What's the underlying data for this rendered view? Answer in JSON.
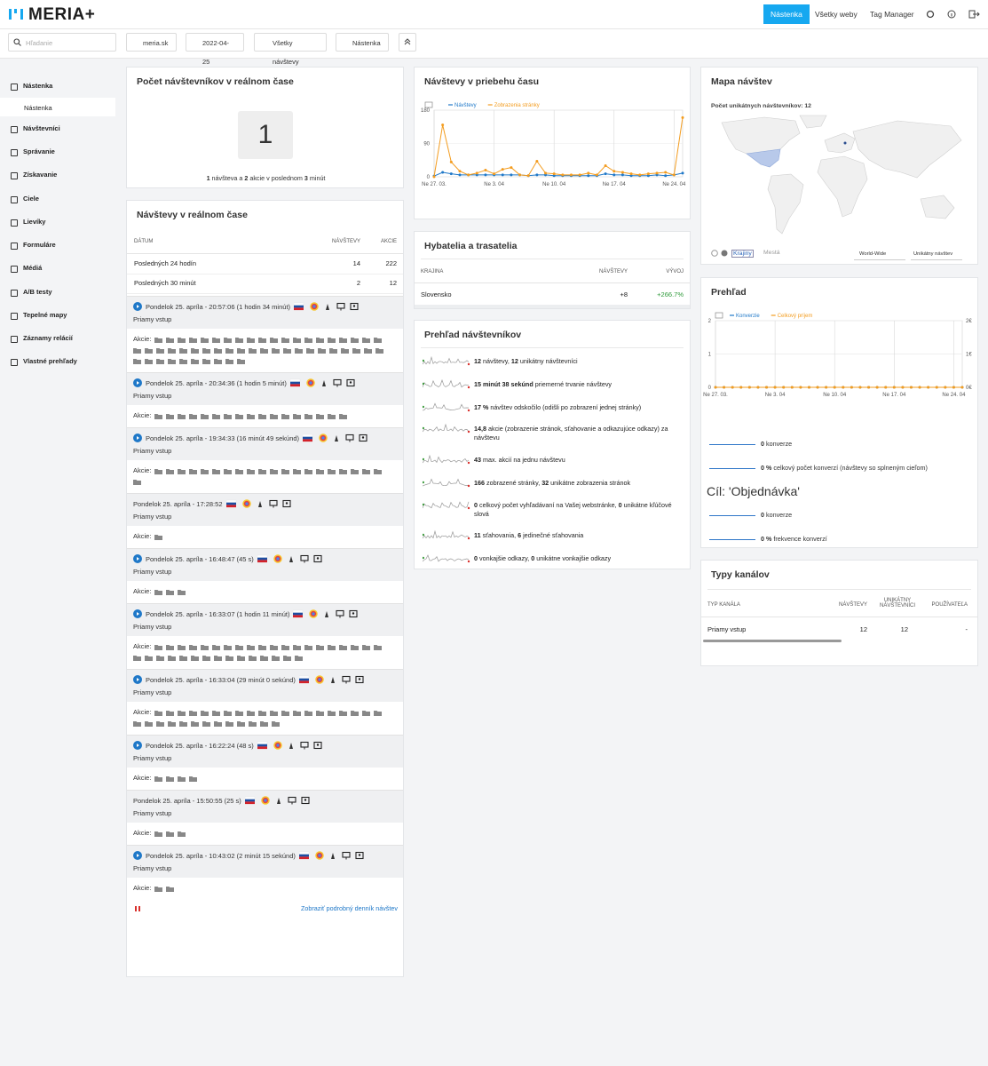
{
  "header": {
    "logo": "MERIA+",
    "nav": [
      "Nástenka",
      "Všetky weby",
      "Tag Manager"
    ]
  },
  "toolbar": {
    "search_placeholder": "Hľadanie",
    "filters": [
      "meria.sk",
      "2022-04-25",
      "Všetky návštevy",
      "Nástenka"
    ]
  },
  "sidebar": {
    "items": [
      "Nástenka",
      "Návštevníci",
      "Správanie",
      "Získavanie",
      "Ciele",
      "Lievíky",
      "Formuláre",
      "Médiá",
      "A/B testy",
      "Tepelné mapy",
      "Záznamy relácií",
      "Vlastné prehľady"
    ],
    "sub_item": "Nástenka"
  },
  "realtime_count": {
    "title": "Počet návštevníkov v reálnom čase",
    "value": 1,
    "summary": [
      "1",
      " návšteva a ",
      "2",
      " akcie v poslednom ",
      "3",
      " minút"
    ]
  },
  "realtime_visits": {
    "title": "Návštevy v reálnom čase",
    "headers": [
      "DÁTUM",
      "NÁVŠTEVY",
      "AKCIE"
    ],
    "rows": [
      [
        "Posledných 24 hodín",
        14,
        222
      ],
      [
        "Posledných 30 minút",
        2,
        12
      ]
    ],
    "visits": [
      {
        "time": "Pondelok 25. apríla - 20:57:06 (1 hodin 34 minút)",
        "play": true,
        "source": "Priamy vstup",
        "actions_label": "Akcie:",
        "action_icons": 52
      },
      {
        "time": "Pondelok 25. apríla - 20:34:36 (1 hodin 5 minút)",
        "play": true,
        "source": "Priamy vstup",
        "actions_label": "Akcie:",
        "action_icons": 17
      },
      {
        "time": "Pondelok 25. apríla - 19:34:33 (16 minút 49 sekúnd)",
        "play": true,
        "source": "Priamy vstup",
        "actions_label": "Akcie:",
        "action_icons": 21
      },
      {
        "time": "Pondelok 25. apríla - 17:28:52",
        "play": false,
        "source": "Priamy vstup",
        "actions_label": "Akcie:",
        "action_icons": 1
      },
      {
        "time": "Pondelok 25. apríla - 16:48:47 (45 s)",
        "play": true,
        "source": "Priamy vstup",
        "actions_label": "Akcie:",
        "action_icons": 3
      },
      {
        "time": "Pondelok 25. apríla - 16:33:07 (1 hodin 11 minút)",
        "play": true,
        "source": "Priamy vstup",
        "actions_label": "Akcie:",
        "action_icons": 35
      },
      {
        "time": "Pondelok 25. apríla - 16:33:04 (29 minút 0 sekúnd)",
        "play": true,
        "source": "Priamy vstup",
        "actions_label": "Akcie:",
        "action_icons": 33
      },
      {
        "time": "Pondelok 25. apríla - 16:22:24 (48 s)",
        "play": true,
        "source": "Priamy vstup",
        "actions_label": "Akcie:",
        "action_icons": 4
      },
      {
        "time": "Pondelok 25. apríla - 15:50:55 (25 s)",
        "play": false,
        "source": "Priamy vstup",
        "actions_label": "Akcie:",
        "action_icons": 3
      },
      {
        "time": "Pondelok 25. apríla - 10:43:02 (2 minút 15 sekúnd)",
        "play": true,
        "source": "Priamy vstup",
        "actions_label": "Akcie:",
        "action_icons": 2
      }
    ],
    "footer": "Zobraziť podrobný denník návštev"
  },
  "chart_data": [
    {
      "type": "line",
      "title": "Návštevy v priebehu času",
      "categories": [
        "Ne 27. 03.",
        null,
        null,
        null,
        null,
        null,
        null,
        "Ne 3. 04",
        null,
        null,
        null,
        null,
        null,
        null,
        "Ne 10. 04",
        null,
        null,
        null,
        null,
        null,
        null,
        "Ne 17. 04",
        null,
        null,
        null,
        null,
        null,
        null,
        "Ne 24. 04",
        null
      ],
      "ylim": [
        0,
        180
      ],
      "yticks": [
        0,
        90,
        180
      ],
      "series": [
        {
          "name": "Návštevy",
          "color": "#1f78c8",
          "values": [
            2,
            12,
            8,
            5,
            5,
            5,
            5,
            5,
            5,
            5,
            5,
            3,
            5,
            5,
            3,
            3,
            3,
            3,
            3,
            3,
            8,
            5,
            5,
            3,
            3,
            3,
            5,
            3,
            5,
            10
          ]
        },
        {
          "name": "Zobrazenia stránky",
          "color": "#f39c1f",
          "values": [
            0,
            140,
            40,
            15,
            5,
            10,
            18,
            8,
            20,
            25,
            5,
            3,
            42,
            10,
            8,
            5,
            5,
            5,
            10,
            5,
            30,
            15,
            12,
            8,
            5,
            8,
            10,
            12,
            5,
            160
          ]
        }
      ]
    },
    {
      "type": "line",
      "title": "Prehľad",
      "categories": [
        "Ne 27. 03.",
        null,
        null,
        null,
        null,
        null,
        null,
        "Ne 3. 04",
        null,
        null,
        null,
        null,
        null,
        null,
        "Ne 10. 04",
        null,
        null,
        null,
        null,
        null,
        null,
        "Ne 17. 04",
        null,
        null,
        null,
        null,
        null,
        null,
        "Ne 24. 04",
        null
      ],
      "ylim": [
        0,
        2
      ],
      "yticks": [
        0,
        1,
        2
      ],
      "y2lim": [
        0,
        2
      ],
      "y2ticks": [
        {
          "value": 0,
          "label": "0€"
        },
        {
          "value": 1,
          "label": "1€"
        },
        {
          "value": 2,
          "label": "2€"
        }
      ],
      "series": [
        {
          "name": "Konverzie",
          "color": "#1f78c8",
          "values": [
            0,
            0,
            0,
            0,
            0,
            0,
            0,
            0,
            0,
            0,
            0,
            0,
            0,
            0,
            0,
            0,
            0,
            0,
            0,
            0,
            0,
            0,
            0,
            0,
            0,
            0,
            0,
            0,
            0,
            0
          ]
        },
        {
          "name": "Celkový príjem",
          "color": "#f39c1f",
          "axis": "y2",
          "values": [
            0,
            0,
            0,
            0,
            0,
            0,
            0,
            0,
            0,
            0,
            0,
            0,
            0,
            0,
            0,
            0,
            0,
            0,
            0,
            0,
            0,
            0,
            0,
            0,
            0,
            0,
            0,
            0,
            0,
            0
          ]
        }
      ]
    }
  ],
  "movers": {
    "title": "Hybatelia a trasatelia",
    "headers": [
      "KRAJINA",
      "NÁVŠTEVY",
      "VÝVOJ"
    ],
    "rows": [
      [
        "Slovensko",
        "+8",
        "+266.7%"
      ]
    ]
  },
  "visitor_overview": {
    "title": "Prehľad návštevníkov",
    "items": [
      [
        "12",
        " návštevy, ",
        "12",
        " unikátny návštevníci"
      ],
      [
        "15 minút 38 sekúnd",
        " priemerné trvanie návštevy"
      ],
      [
        "17 %",
        " návštev odskočilo (odišli po zobrazení jednej stránky)"
      ],
      [
        "14,8",
        " akcie (zobrazenie stránok, sťahovanie a odkazujúce odkazy) za návštevu"
      ],
      [
        "43",
        " max. akcií na jednu návštevu"
      ],
      [
        "166",
        " zobrazené stránky, ",
        "32",
        " unikátne zobrazenia stránok"
      ],
      [
        "0",
        " celkový počet vyhľadávaní na Vašej webstránke, ",
        "0",
        " unikátne kľúčové slová"
      ],
      [
        "11",
        " sťahovania, ",
        "6",
        " jedinečné sťahovania"
      ],
      [
        "0",
        " vonkajšie odkazy, ",
        "0",
        " unikátne vonkajšie odkazy"
      ]
    ]
  },
  "map": {
    "title": "Mapa návštev",
    "subtitle": "Počet unikátnych návštevníkov: 12",
    "controls": [
      "Krajiny",
      "Mestá",
      "World-Wide",
      "Unikátny návštev"
    ]
  },
  "goals": {
    "items": [
      [
        "0",
        " konverze"
      ],
      [
        "0 %",
        " celkový počet konverzí (návštevy so splneným cieľom)"
      ]
    ],
    "goal_title": "Cíl: 'Objednávka'",
    "goal_items": [
      [
        "0",
        " konverze"
      ],
      [
        "0 %",
        " frekvence konverzí"
      ]
    ]
  },
  "channels": {
    "title": "Typy kanálov",
    "headers": [
      "TYP KANÁLA",
      "NÁVŠTEVY",
      "UNIKÁTNY NÁVŠTEVNÍCI",
      "POUŽÍVATEĽA"
    ],
    "rows": [
      [
        "Priamy vstup",
        12,
        12,
        "-"
      ]
    ]
  }
}
